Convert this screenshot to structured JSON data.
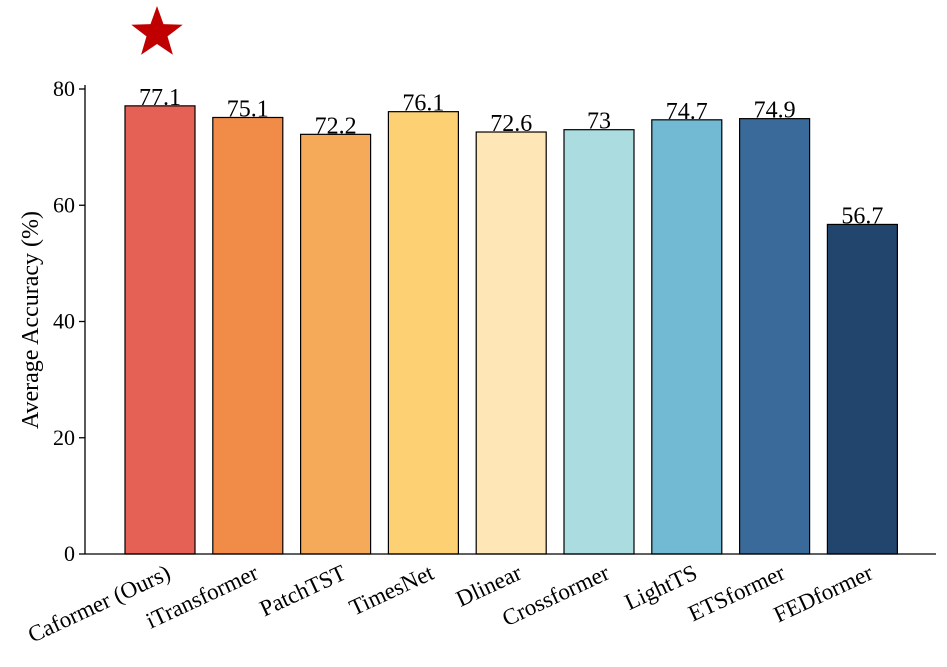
{
  "chart_data": {
    "type": "bar",
    "title": "",
    "xlabel": "",
    "ylabel": "Average Accuracy (%)",
    "ylim": [
      0,
      80
    ],
    "yticks": [
      0,
      20,
      40,
      60,
      80
    ],
    "grid": false,
    "highlight_marker": {
      "category": "Caformer (Ours)",
      "shape": "star",
      "color": "#c00000"
    },
    "categories": [
      "Caformer (Ours)",
      "iTransformer",
      "PatchTST",
      "TimesNet",
      "Dlinear",
      "Crossformer",
      "LightTS",
      "ETSformer",
      "FEDformer"
    ],
    "values": [
      77.1,
      75.1,
      72.2,
      76.1,
      72.6,
      73,
      74.7,
      74.9,
      56.7
    ],
    "value_labels": [
      "77.1",
      "75.1",
      "72.2",
      "76.1",
      "72.6",
      "73",
      "74.7",
      "74.9",
      "56.7"
    ],
    "colors": [
      "#e66155",
      "#f08b48",
      "#f5aa5a",
      "#fdd073",
      "#fee6b6",
      "#abdcdf",
      "#72b9d3",
      "#3a6a99",
      "#22456d"
    ]
  }
}
